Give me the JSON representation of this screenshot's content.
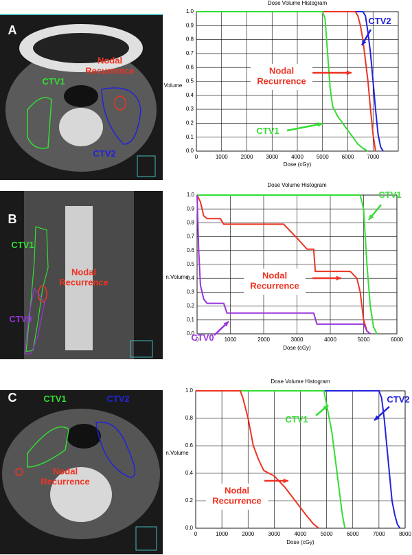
{
  "chart_data": [
    {
      "type": "line",
      "title": "Dose Volume Histogram",
      "x_label": "Dose (cGy)",
      "y_label": "Volume",
      "xlim": [
        0,
        8000
      ],
      "xticks": [
        0,
        1000,
        2000,
        3000,
        4000,
        5000,
        6000,
        7000
      ],
      "ylim": [
        0,
        1
      ],
      "yticks": [
        {
          "value": 0,
          "label": "0.0"
        },
        0.1,
        0.2,
        0.3,
        0.4,
        0.5,
        0.6,
        0.7,
        0.8,
        0.9,
        {
          "value": 1,
          "label": "1.0"
        }
      ],
      "grid": true,
      "series": [
        {
          "name": "CTV2",
          "color": "#2222dd",
          "x": [
            0,
            6600,
            6700,
            6800,
            6900,
            7000,
            7100,
            7200,
            7300,
            7400
          ],
          "values": [
            1,
            1,
            0.97,
            0.85,
            0.7,
            0.5,
            0.3,
            0.12,
            0.03,
            0
          ]
        },
        {
          "name": "Nodal Recurrence",
          "color": "#ee3322",
          "x": [
            0,
            6300,
            6400,
            6500,
            6600,
            6700,
            6800,
            6900,
            7000,
            7100
          ],
          "values": [
            1,
            1,
            0.97,
            0.9,
            0.8,
            0.65,
            0.5,
            0.3,
            0.12,
            0
          ]
        },
        {
          "name": "CTV1",
          "color": "#33dd33",
          "x": [
            0,
            5000,
            5100,
            5200,
            5300,
            5400,
            5600,
            5800,
            6000,
            6200,
            6400,
            6600,
            6800
          ],
          "values": [
            1,
            1,
            0.95,
            0.7,
            0.45,
            0.32,
            0.25,
            0.2,
            0.15,
            0.1,
            0.05,
            0.02,
            0
          ]
        }
      ]
    },
    {
      "type": "line",
      "title": "Dose Volume Histogram",
      "x_label": "Dose (cGy)",
      "y_label": "n.Volume",
      "xlim": [
        0,
        6000
      ],
      "xticks": [
        0,
        1000,
        2000,
        3000,
        4000,
        5000,
        6000
      ],
      "ylim": [
        0,
        1
      ],
      "yticks": [
        {
          "value": 0,
          "label": "0.0"
        },
        0.1,
        0.2,
        0.3,
        0.4,
        0.5,
        0.6,
        0.7,
        0.8,
        0.9,
        {
          "value": 1,
          "label": "1.0"
        }
      ],
      "grid": true,
      "series": [
        {
          "name": "CTV1",
          "color": "#33dd33",
          "x": [
            0,
            4900,
            5000,
            5100,
            5200,
            5300,
            5400
          ],
          "values": [
            1,
            1,
            0.9,
            0.5,
            0.2,
            0.05,
            0
          ]
        },
        {
          "name": "Nodal Recurrence",
          "color": "#ee3322",
          "x": [
            0,
            100,
            200,
            300,
            700,
            800,
            2600,
            3000,
            3300,
            3500,
            3550,
            4600,
            4800,
            4900,
            5000,
            5100,
            5200
          ],
          "values": [
            1,
            0.95,
            0.85,
            0.83,
            0.83,
            0.79,
            0.79,
            0.69,
            0.61,
            0.61,
            0.45,
            0.45,
            0.4,
            0.3,
            0.1,
            0.02,
            0
          ]
        },
        {
          "name": "CTV0",
          "color": "#9933dd",
          "x": [
            0,
            50,
            100,
            200,
            300,
            800,
            900,
            3500,
            3600,
            5000,
            5100,
            5200
          ],
          "values": [
            1,
            0.6,
            0.35,
            0.25,
            0.22,
            0.22,
            0.15,
            0.15,
            0.07,
            0.07,
            0.02,
            0
          ]
        }
      ]
    },
    {
      "type": "line",
      "title": "Dose Volume Histogram",
      "x_label": "Dose (cGy)",
      "y_label": "n.Volume",
      "xlim": [
        0,
        8000
      ],
      "xticks": [
        0,
        1000,
        2000,
        3000,
        4000,
        5000,
        6000,
        7000,
        8000
      ],
      "ylim": [
        0,
        1
      ],
      "yticks": [
        {
          "value": 0,
          "label": "0.0"
        },
        0.2,
        0.4,
        0.6,
        0.8,
        {
          "value": 1,
          "label": "1.0"
        }
      ],
      "grid": true,
      "series": [
        {
          "name": "CTV2",
          "color": "#2222dd",
          "x": [
            0,
            7000,
            7100,
            7200,
            7300,
            7400,
            7500,
            7600,
            7700,
            7800
          ],
          "values": [
            1,
            1,
            0.95,
            0.8,
            0.6,
            0.4,
            0.2,
            0.1,
            0.03,
            0
          ]
        },
        {
          "name": "CTV1",
          "color": "#33dd33",
          "x": [
            0,
            4900,
            5000,
            5200,
            5400,
            5600,
            5700
          ],
          "values": [
            1,
            1,
            0.9,
            0.7,
            0.4,
            0.1,
            0
          ]
        },
        {
          "name": "Nodal Recurrence",
          "color": "#ee3322",
          "x": [
            0,
            1700,
            1800,
            2000,
            2200,
            2400,
            2600,
            3000,
            3400,
            3800,
            4200,
            4500,
            4700
          ],
          "values": [
            1,
            1,
            0.95,
            0.8,
            0.6,
            0.5,
            0.42,
            0.38,
            0.3,
            0.2,
            0.1,
            0.03,
            0
          ]
        }
      ]
    }
  ],
  "images": [
    {
      "panel": "A",
      "labels": [
        "CTV1",
        "Nodal Recurrence",
        "CTV2"
      ]
    },
    {
      "panel": "B",
      "labels": [
        "CTV1",
        "Nodal Recurrence",
        "CTV0"
      ]
    },
    {
      "panel": "C",
      "labels": [
        "CTV1",
        "CTV2",
        "Nodal Recurrence"
      ]
    }
  ]
}
